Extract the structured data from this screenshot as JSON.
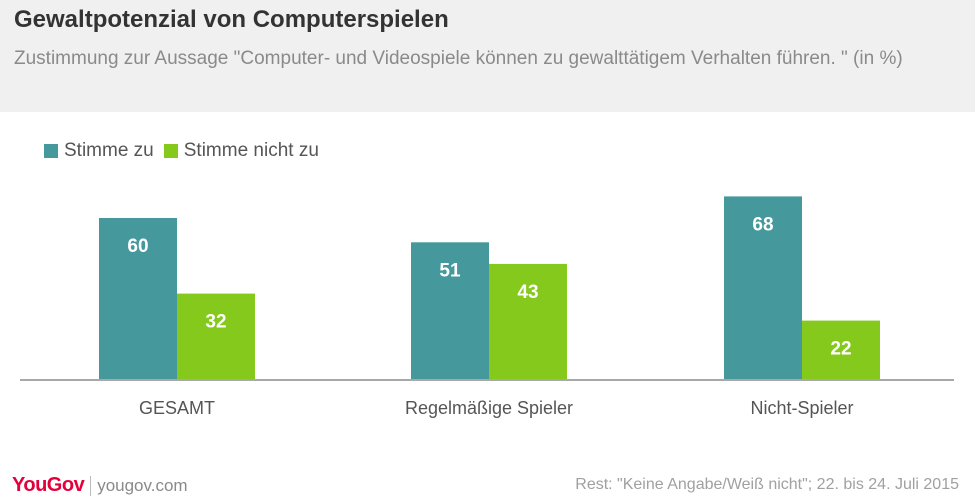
{
  "header": {
    "title": "Gewaltpotenzial von Computerspielen",
    "subtitle": "Zustimmung zur Aussage \"Computer- und Videospiele können zu gewalttätigem Verhalten führen. \" (in %)"
  },
  "colors": {
    "series_1": "#45999c",
    "series_2": "#84c91c",
    "header_bg": "#f0f0f0",
    "brand": "#e4003b"
  },
  "chart_data": {
    "type": "bar",
    "categories": [
      "GESAMT",
      "Regelmäßige Spieler",
      "Nicht-Spieler"
    ],
    "series": [
      {
        "name": "Stimme zu",
        "values": [
          60,
          51,
          68
        ]
      },
      {
        "name": "Stimme nicht zu",
        "values": [
          32,
          43,
          22
        ]
      }
    ],
    "ylim": [
      0,
      70
    ],
    "grid": false,
    "legend_position": "top-left"
  },
  "footer": {
    "logo": "YouGov",
    "url": "yougov.com",
    "note": "Rest: \"Keine Angabe/Weiß nicht\"; 22. bis 24. Juli 2015"
  }
}
